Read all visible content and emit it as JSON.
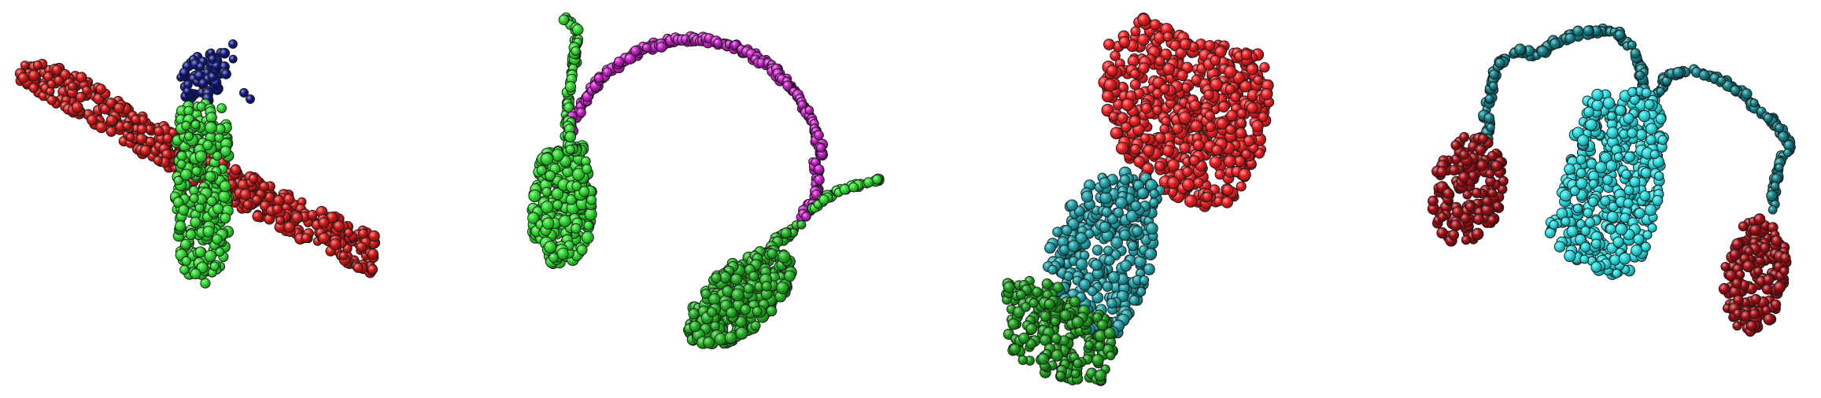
{
  "figure": {
    "panel_count": 4,
    "background": "#ffffff",
    "render_style": "point cloud of shaded spheres with dark outlines"
  },
  "panels": [
    {
      "id": "airplane",
      "object": "airplane",
      "parts": [
        {
          "part": "wings",
          "color": "#d01818"
        },
        {
          "part": "body",
          "color": "#2fd62f"
        },
        {
          "part": "tail",
          "color": "#101880"
        }
      ]
    },
    {
      "id": "earphone",
      "object": "earphone",
      "parts": [
        {
          "part": "headband",
          "color": "#c41ec4"
        },
        {
          "part": "earcup",
          "color": "#2fd62f"
        },
        {
          "part": "earcup",
          "color": "#22b022"
        },
        {
          "part": "cord",
          "color": "#2fd62f"
        }
      ]
    },
    {
      "id": "lamp",
      "object": "lamp",
      "parts": [
        {
          "part": "shade",
          "color": "#e81e22"
        },
        {
          "part": "tube",
          "color": "#1fa0a6"
        },
        {
          "part": "base",
          "color": "#1c9c1c"
        }
      ]
    },
    {
      "id": "earphone-2",
      "object": "earphone",
      "parts": [
        {
          "part": "earpiece",
          "color": "#a00d14"
        },
        {
          "part": "earpiece",
          "color": "#a00d14"
        },
        {
          "part": "cord",
          "color": "#128088"
        },
        {
          "part": "connector",
          "color": "#28d8dc"
        }
      ]
    }
  ]
}
